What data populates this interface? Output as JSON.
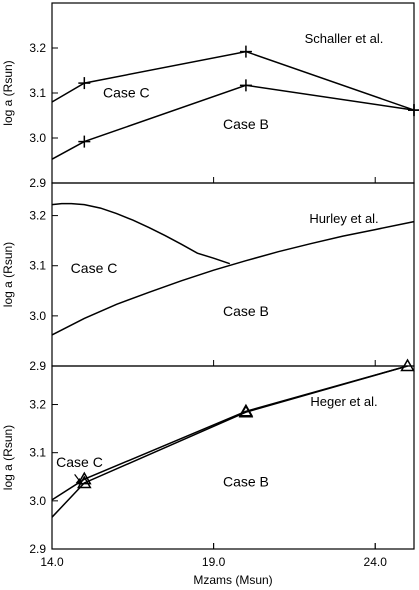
{
  "x_axis": {
    "label": "Mzams (Msun)",
    "range": [
      14.0,
      25.2
    ],
    "ticks": [
      14.0,
      19.0,
      24.0
    ],
    "tick_labels": [
      "14.0",
      "19.0",
      "24.0"
    ]
  },
  "chart_data": [
    {
      "type": "line",
      "annotation": "Schaller et al.",
      "ylabel": "log a (Rsun)",
      "ylim": [
        2.9,
        3.3
      ],
      "yticks": [
        2.9,
        3.0,
        3.1,
        3.2
      ],
      "ytick_labels": [
        "2.9",
        "3.0",
        "3.1",
        "3.2"
      ],
      "marker": "plus",
      "grid": false,
      "series": [
        {
          "name": "Case C",
          "x": [
            14.0,
            15.0,
            20.0,
            25.2
          ],
          "y": [
            3.08,
            3.122,
            3.192,
            3.062
          ],
          "markers": [
            false,
            true,
            true,
            true
          ]
        },
        {
          "name": "Case B",
          "x": [
            14.0,
            15.0,
            20.0,
            25.2
          ],
          "y": [
            2.953,
            2.992,
            3.117,
            3.062
          ],
          "markers": [
            false,
            true,
            true,
            true
          ]
        }
      ],
      "labels": [
        {
          "text": "Case C",
          "x": 16.3,
          "y": 3.09
        },
        {
          "text": "Case B",
          "x": 20.0,
          "y": 3.02
        }
      ]
    },
    {
      "type": "line",
      "annotation": "Hurley et al.",
      "ylabel": "log a (Rsun)",
      "ylim": [
        2.9,
        3.265
      ],
      "yticks": [
        2.9,
        3.0,
        3.1,
        3.2
      ],
      "ytick_labels": [
        "2.9",
        "3.0",
        "3.1",
        "3.2"
      ],
      "marker": "none",
      "grid": false,
      "series": [
        {
          "name": "Case C",
          "x": [
            14.0,
            14.3,
            14.6,
            15.0,
            15.5,
            16.0,
            16.5,
            17.0,
            17.5,
            18.0,
            18.5,
            19.0,
            19.5
          ],
          "y": [
            3.222,
            3.224,
            3.224,
            3.222,
            3.215,
            3.204,
            3.191,
            3.176,
            3.16,
            3.143,
            3.125,
            3.115,
            3.104
          ]
        },
        {
          "name": "Case B",
          "x": [
            14.0,
            15.0,
            16.0,
            17.0,
            18.0,
            19.0,
            20.0,
            21.0,
            22.0,
            23.0,
            24.0,
            25.2
          ],
          "y": [
            2.962,
            2.995,
            3.023,
            3.047,
            3.07,
            3.091,
            3.11,
            3.128,
            3.144,
            3.159,
            3.172,
            3.188
          ]
        }
      ],
      "labels": [
        {
          "text": "Case C",
          "x": 15.3,
          "y": 3.085
        },
        {
          "text": "Case B",
          "x": 20.0,
          "y": 3.0
        }
      ]
    },
    {
      "type": "line",
      "annotation": "Heger et al.",
      "ylabel": "log a (Rsun)",
      "ylim": [
        2.9,
        3.28
      ],
      "yticks": [
        2.9,
        3.0,
        3.1,
        3.2
      ],
      "ytick_labels": [
        "2.9",
        "3.0",
        "3.1",
        "3.2"
      ],
      "marker": "triangle",
      "grid": false,
      "series": [
        {
          "name": "Case C",
          "x": [
            14.0,
            15.0,
            20.0,
            25.0
          ],
          "y": [
            3.002,
            3.045,
            3.186,
            3.28
          ],
          "markers": [
            false,
            true,
            true,
            true
          ]
        },
        {
          "name": "Case B",
          "x": [
            14.0,
            15.0,
            20.0,
            25.0
          ],
          "y": [
            2.966,
            3.037,
            3.184,
            3.28
          ],
          "markers": [
            false,
            true,
            true,
            false
          ]
        }
      ],
      "labels": [
        {
          "text": "Case C",
          "x": 14.85,
          "y": 3.07
        },
        {
          "text": "Case B",
          "x": 20.0,
          "y": 3.03
        }
      ]
    }
  ]
}
